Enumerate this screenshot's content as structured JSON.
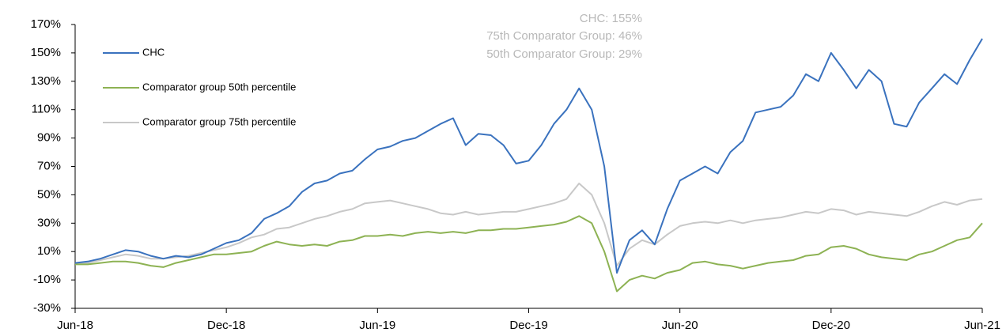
{
  "chart_data": {
    "type": "line",
    "annotations": [
      "CHC: 155%",
      "75th Comparator Group: 46%",
      "50th Comparator Group: 29%"
    ],
    "categories": [
      "Jun-18",
      null,
      null,
      null,
      null,
      null,
      null,
      null,
      null,
      null,
      null,
      null,
      "Dec-18",
      null,
      null,
      null,
      null,
      null,
      null,
      null,
      null,
      null,
      null,
      null,
      "Jun-19",
      null,
      null,
      null,
      null,
      null,
      null,
      null,
      null,
      null,
      null,
      null,
      "Dec-19",
      null,
      null,
      null,
      null,
      null,
      null,
      null,
      null,
      null,
      null,
      null,
      "Jun-20",
      null,
      null,
      null,
      null,
      null,
      null,
      null,
      null,
      null,
      null,
      null,
      "Dec-20",
      null,
      null,
      null,
      null,
      null,
      null,
      null,
      null,
      null,
      null,
      null,
      "Jun-21"
    ],
    "series": [
      {
        "name": "CHC",
        "color": "#3a72be",
        "values": [
          2,
          3,
          5,
          8,
          11,
          10,
          7,
          5,
          7,
          6,
          8,
          12,
          16,
          18,
          23,
          33,
          37,
          42,
          52,
          58,
          60,
          65,
          67,
          75,
          82,
          84,
          88,
          90,
          95,
          100,
          104,
          85,
          93,
          92,
          85,
          72,
          74,
          85,
          100,
          110,
          125,
          110,
          70,
          -5,
          18,
          25,
          15,
          40,
          60,
          65,
          70,
          65,
          80,
          88,
          108,
          110,
          112,
          120,
          135,
          130,
          150,
          138,
          125,
          138,
          130,
          100,
          98,
          115,
          125,
          135,
          128,
          145,
          160
        ]
      },
      {
        "name": "Comparator group 50th percentile",
        "color": "#8db253",
        "values": [
          1,
          1,
          2,
          3,
          3,
          2,
          0,
          -1,
          2,
          4,
          6,
          8,
          8,
          9,
          10,
          14,
          17,
          15,
          14,
          15,
          14,
          17,
          18,
          21,
          21,
          22,
          21,
          23,
          24,
          23,
          24,
          23,
          25,
          25,
          26,
          26,
          27,
          28,
          29,
          31,
          35,
          30,
          10,
          -18,
          -10,
          -7,
          -9,
          -5,
          -3,
          2,
          3,
          1,
          0,
          -2,
          0,
          2,
          3,
          4,
          7,
          8,
          13,
          14,
          12,
          8,
          6,
          5,
          4,
          8,
          10,
          14,
          18,
          20,
          30
        ]
      },
      {
        "name": "Comparator group 75th percentile",
        "color": "#c8c8c8",
        "values": [
          1,
          2,
          4,
          6,
          8,
          7,
          5,
          5,
          6,
          7,
          9,
          11,
          13,
          16,
          20,
          22,
          26,
          27,
          30,
          33,
          35,
          38,
          40,
          44,
          45,
          46,
          44,
          42,
          40,
          37,
          36,
          38,
          36,
          37,
          38,
          38,
          40,
          42,
          44,
          47,
          58,
          50,
          30,
          0,
          12,
          18,
          15,
          22,
          28,
          30,
          31,
          30,
          32,
          30,
          32,
          33,
          34,
          36,
          38,
          37,
          40,
          39,
          36,
          38,
          37,
          36,
          35,
          38,
          42,
          45,
          43,
          46,
          47
        ]
      }
    ],
    "ylim": [
      -30,
      170
    ],
    "yticks": [
      {
        "value": -30,
        "label": "-30%"
      },
      {
        "value": -10,
        "label": "-10%"
      },
      {
        "value": 10,
        "label": "10%"
      },
      {
        "value": 30,
        "label": "30%"
      },
      {
        "value": 50,
        "label": "50%"
      },
      {
        "value": 70,
        "label": "70%"
      },
      {
        "value": 90,
        "label": "90%"
      },
      {
        "value": 110,
        "label": "110%"
      },
      {
        "value": 130,
        "label": "130%"
      },
      {
        "value": 150,
        "label": "150%"
      },
      {
        "value": 170,
        "label": "170%"
      }
    ],
    "grid": false,
    "legend": "upper left"
  }
}
